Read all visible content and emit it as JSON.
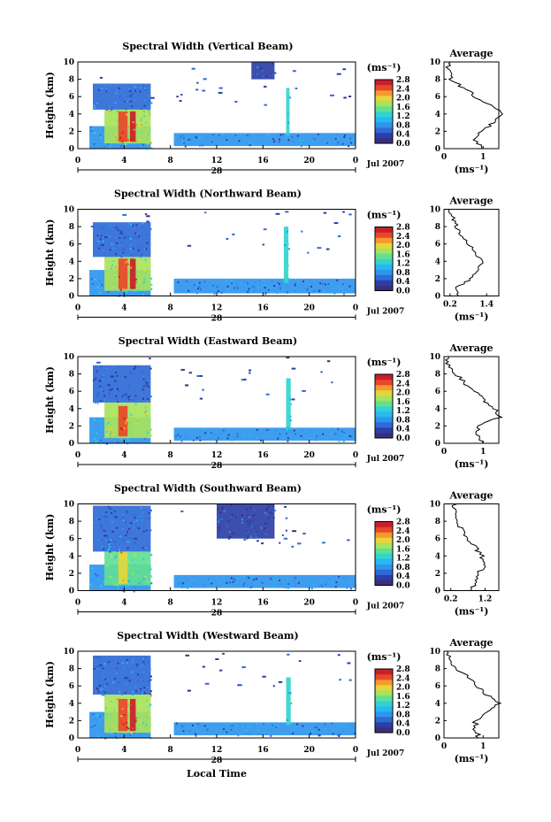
{
  "colors": {
    "scale": [
      "#3b2e7e",
      "#2c3fa6",
      "#2f6ad6",
      "#2f95ee",
      "#27b9f0",
      "#33d4cf",
      "#62e092",
      "#a8e35c",
      "#e7d53c",
      "#f59a2c",
      "#e8482a",
      "#c91f2a"
    ]
  },
  "date_label": "Jul 2007",
  "day_label": "28",
  "xlabel": "Local Time",
  "panels": [
    {
      "title": "Spectral Width (Vertical Beam)",
      "ylabel": "Height (km)",
      "xticks": [
        "0",
        "4",
        "8",
        "12",
        "16",
        "20",
        "0"
      ],
      "yticks": [
        "0",
        "2",
        "4",
        "6",
        "8",
        "10"
      ],
      "colorbar": {
        "unit": "(ms⁻¹)",
        "ticks": [
          "0.0",
          "0.4",
          "0.8",
          "1.2",
          "1.6",
          "2.0",
          "2.4",
          "2.8"
        ]
      },
      "avg": {
        "title": "Average",
        "xticks": [
          "0",
          "1"
        ],
        "xlabel": "(ms⁻¹)",
        "yticks": [
          "0",
          "2",
          "4",
          "6",
          "8",
          "10"
        ]
      }
    },
    {
      "title": "Spectral Width (Northward Beam)",
      "ylabel": "Height (km)",
      "xticks": [
        "0",
        "4",
        "8",
        "12",
        "16",
        "20",
        "0"
      ],
      "yticks": [
        "0",
        "2",
        "4",
        "6",
        "8",
        "10"
      ],
      "colorbar": {
        "unit": "(ms⁻¹)",
        "ticks": [
          "0.0",
          "0.4",
          "0.8",
          "1.2",
          "1.6",
          "2.0",
          "2.4",
          "2.8"
        ]
      },
      "avg": {
        "title": "Average",
        "xticks": [
          "0.2",
          "1.4"
        ],
        "xlabel": "(ms⁻¹)",
        "yticks": [
          "0",
          "2",
          "4",
          "6",
          "8",
          "10"
        ]
      }
    },
    {
      "title": "Spectral Width (Eastward Beam)",
      "ylabel": "Height (km)",
      "xticks": [
        "0",
        "4",
        "8",
        "12",
        "16",
        "20",
        "0"
      ],
      "yticks": [
        "0",
        "2",
        "4",
        "6",
        "8",
        "10"
      ],
      "colorbar": {
        "unit": "(ms⁻¹)",
        "ticks": [
          "0.0",
          "0.4",
          "0.8",
          "1.2",
          "1.6",
          "2.0",
          "2.4",
          "2.8"
        ]
      },
      "avg": {
        "title": "Average",
        "xticks": [
          "0",
          "1"
        ],
        "xlabel": "(ms⁻¹)",
        "yticks": [
          "0",
          "2",
          "4",
          "6",
          "8",
          "10"
        ]
      }
    },
    {
      "title": "Spectral Width (Southward Beam)",
      "ylabel": "Height (km)",
      "xticks": [
        "0",
        "4",
        "8",
        "12",
        "16",
        "20",
        "0"
      ],
      "yticks": [
        "0",
        "2",
        "4",
        "6",
        "8",
        "10"
      ],
      "colorbar": {
        "unit": "(ms⁻¹)",
        "ticks": [
          "0.0",
          "0.4",
          "0.8",
          "1.2",
          "1.6",
          "2.0",
          "2.4",
          "2.8"
        ]
      },
      "avg": {
        "title": "Average",
        "xticks": [
          "0.2",
          "1.2"
        ],
        "xlabel": "(ms⁻¹)",
        "yticks": [
          "0",
          "2",
          "4",
          "6",
          "8",
          "10"
        ]
      }
    },
    {
      "title": "Spectral Width (Westward Beam)",
      "ylabel": "Height (km)",
      "xticks": [
        "0",
        "4",
        "8",
        "12",
        "16",
        "20",
        "0"
      ],
      "yticks": [
        "0",
        "2",
        "4",
        "6",
        "8",
        "10"
      ],
      "colorbar": {
        "unit": "(ms⁻¹)",
        "ticks": [
          "0.0",
          "0.4",
          "0.8",
          "1.2",
          "1.6",
          "2.0",
          "2.4",
          "2.8"
        ]
      },
      "avg": {
        "title": "Average",
        "xticks": [
          "0",
          "1"
        ],
        "xlabel": "(ms⁻¹)",
        "yticks": [
          "0",
          "2",
          "4",
          "6",
          "8",
          "10"
        ]
      }
    }
  ],
  "chart_data": [
    {
      "type": "heatmap",
      "title": "Spectral Width (Vertical Beam)",
      "ylabel": "Height (km)",
      "xlim": [
        0,
        24
      ],
      "ylim": [
        0,
        10
      ],
      "colorbar_range": [
        0.0,
        2.8
      ],
      "features": [
        {
          "t0": 1.0,
          "t1": 6.3,
          "h0": 0.0,
          "h1": 2.6,
          "value": 0.9
        },
        {
          "t0": 2.3,
          "t1": 6.3,
          "h0": 0.6,
          "h1": 4.5,
          "value": 1.8
        },
        {
          "t0": 3.5,
          "t1": 4.3,
          "h0": 0.8,
          "h1": 4.3,
          "value": 2.5
        },
        {
          "t0": 4.5,
          "t1": 5.0,
          "h0": 0.8,
          "h1": 4.3,
          "value": 2.6
        },
        {
          "t0": 1.3,
          "t1": 6.3,
          "h0": 4.5,
          "h1": 7.5,
          "value": 0.6
        },
        {
          "t0": 8.3,
          "t1": 24.0,
          "h0": 0.3,
          "h1": 1.8,
          "value": 0.7
        },
        {
          "t0": 18.0,
          "t1": 18.3,
          "h0": 1.5,
          "h1": 7.0,
          "value": 1.2
        },
        {
          "t0": 15.0,
          "t1": 17.0,
          "h0": 8.0,
          "h1": 10.0,
          "value": 0.3
        }
      ],
      "profile": {
        "height": [
          0,
          1,
          2,
          3,
          4,
          5,
          6,
          7,
          8,
          9,
          10
        ],
        "width": [
          1.0,
          0.8,
          0.9,
          1.3,
          1.5,
          1.2,
          0.8,
          0.5,
          0.2,
          0.1,
          0.1
        ]
      }
    },
    {
      "type": "heatmap",
      "title": "Spectral Width (Northward Beam)",
      "ylabel": "Height (km)",
      "xlim": [
        0,
        24
      ],
      "ylim": [
        0,
        10
      ],
      "colorbar_range": [
        0.0,
        2.8
      ],
      "features": [
        {
          "t0": 1.0,
          "t1": 6.3,
          "h0": 0.0,
          "h1": 3.0,
          "value": 0.9
        },
        {
          "t0": 2.3,
          "t1": 6.3,
          "h0": 0.6,
          "h1": 4.5,
          "value": 1.7
        },
        {
          "t0": 3.5,
          "t1": 4.3,
          "h0": 0.8,
          "h1": 4.3,
          "value": 2.4
        },
        {
          "t0": 4.5,
          "t1": 5.0,
          "h0": 0.8,
          "h1": 4.3,
          "value": 2.6
        },
        {
          "t0": 1.3,
          "t1": 6.3,
          "h0": 4.5,
          "h1": 8.5,
          "value": 0.6
        },
        {
          "t0": 8.3,
          "t1": 24.0,
          "h0": 0.3,
          "h1": 2.0,
          "value": 0.7
        },
        {
          "t0": 17.8,
          "t1": 18.2,
          "h0": 1.5,
          "h1": 8.0,
          "value": 1.2
        }
      ],
      "profile": {
        "height": [
          0,
          1,
          2,
          3,
          4,
          5,
          6,
          7,
          8,
          9,
          10
        ],
        "width": [
          0.5,
          0.4,
          0.9,
          1.1,
          1.3,
          1.0,
          0.8,
          0.6,
          0.4,
          0.3,
          0.2
        ]
      }
    },
    {
      "type": "heatmap",
      "title": "Spectral Width (Eastward Beam)",
      "ylabel": "Height (km)",
      "xlim": [
        0,
        24
      ],
      "ylim": [
        0,
        10
      ],
      "colorbar_range": [
        0.0,
        2.8
      ],
      "features": [
        {
          "t0": 1.0,
          "t1": 6.3,
          "h0": 0.0,
          "h1": 3.0,
          "value": 0.9
        },
        {
          "t0": 2.3,
          "t1": 6.3,
          "h0": 0.6,
          "h1": 4.7,
          "value": 1.7
        },
        {
          "t0": 3.5,
          "t1": 4.3,
          "h0": 0.8,
          "h1": 4.3,
          "value": 2.5
        },
        {
          "t0": 1.3,
          "t1": 6.3,
          "h0": 4.7,
          "h1": 9.0,
          "value": 0.5
        },
        {
          "t0": 8.3,
          "t1": 24.0,
          "h0": 0.3,
          "h1": 1.8,
          "value": 0.7
        },
        {
          "t0": 18.0,
          "t1": 18.4,
          "h0": 1.5,
          "h1": 7.5,
          "value": 1.2
        }
      ],
      "profile": {
        "height": [
          0,
          1,
          2,
          3,
          4,
          5,
          6,
          7,
          8,
          9,
          10
        ],
        "width": [
          1.0,
          0.8,
          0.9,
          1.4,
          1.3,
          1.0,
          0.8,
          0.5,
          0.3,
          0.1,
          0.1
        ]
      }
    },
    {
      "type": "heatmap",
      "title": "Spectral Width (Southward Beam)",
      "ylabel": "Height (km)",
      "xlim": [
        0,
        24
      ],
      "ylim": [
        0,
        10
      ],
      "colorbar_range": [
        0.0,
        2.8
      ],
      "features": [
        {
          "t0": 1.0,
          "t1": 6.3,
          "h0": 0.0,
          "h1": 3.0,
          "value": 0.9
        },
        {
          "t0": 2.3,
          "t1": 6.3,
          "h0": 0.6,
          "h1": 4.5,
          "value": 1.5
        },
        {
          "t0": 3.5,
          "t1": 4.3,
          "h0": 0.8,
          "h1": 4.5,
          "value": 2.0
        },
        {
          "t0": 1.3,
          "t1": 6.3,
          "h0": 4.5,
          "h1": 9.8,
          "value": 0.6
        },
        {
          "t0": 8.3,
          "t1": 24.0,
          "h0": 0.3,
          "h1": 1.8,
          "value": 0.7
        },
        {
          "t0": 12.0,
          "t1": 17.0,
          "h0": 6.0,
          "h1": 10.0,
          "value": 0.4
        }
      ],
      "profile": {
        "height": [
          0,
          1,
          2,
          3,
          4,
          5,
          6,
          7,
          8,
          9,
          10
        ],
        "width": [
          0.8,
          0.9,
          1.0,
          1.2,
          1.1,
          0.9,
          0.7,
          0.5,
          0.4,
          0.3,
          0.3
        ]
      }
    },
    {
      "type": "heatmap",
      "title": "Spectral Width (Westward Beam)",
      "ylabel": "Height (km)",
      "xlim": [
        0,
        24
      ],
      "ylim": [
        0,
        10
      ],
      "colorbar_range": [
        0.0,
        2.8
      ],
      "features": [
        {
          "t0": 1.0,
          "t1": 6.3,
          "h0": 0.0,
          "h1": 3.0,
          "value": 0.9
        },
        {
          "t0": 2.3,
          "t1": 6.3,
          "h0": 0.6,
          "h1": 5.0,
          "value": 1.8
        },
        {
          "t0": 3.5,
          "t1": 4.3,
          "h0": 0.8,
          "h1": 4.5,
          "value": 2.5
        },
        {
          "t0": 4.5,
          "t1": 5.0,
          "h0": 0.8,
          "h1": 4.5,
          "value": 2.6
        },
        {
          "t0": 1.3,
          "t1": 6.3,
          "h0": 5.0,
          "h1": 9.5,
          "value": 0.6
        },
        {
          "t0": 8.3,
          "t1": 24.0,
          "h0": 0.3,
          "h1": 1.8,
          "value": 0.7
        },
        {
          "t0": 18.0,
          "t1": 18.4,
          "h0": 1.5,
          "h1": 7.0,
          "value": 1.2
        }
      ],
      "profile": {
        "height": [
          0,
          1,
          2,
          3,
          4,
          5,
          6,
          7,
          8,
          9,
          10
        ],
        "width": [
          0.9,
          0.8,
          0.8,
          1.1,
          1.4,
          1.1,
          0.8,
          0.6,
          0.3,
          0.1,
          0.1
        ]
      }
    }
  ]
}
